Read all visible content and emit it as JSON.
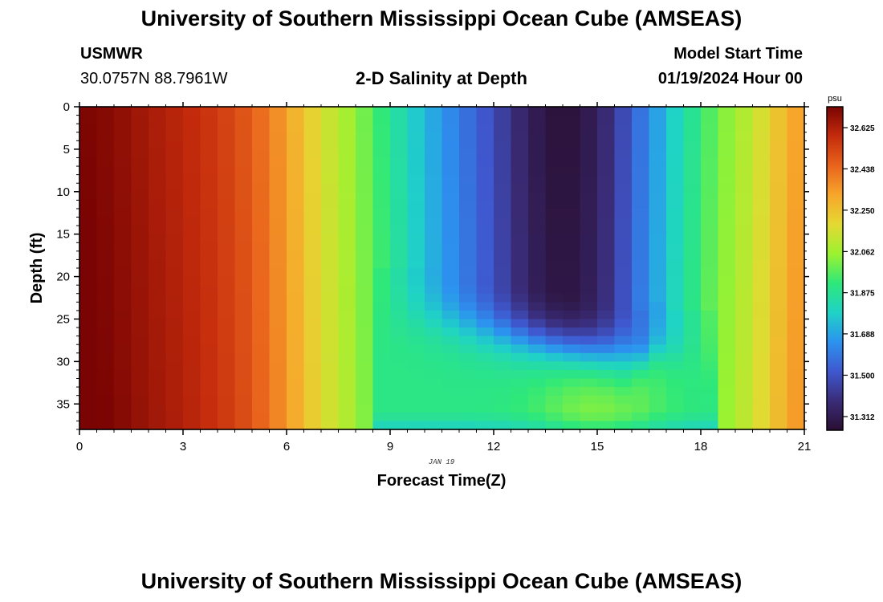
{
  "header": {
    "title": "University of Southern Mississippi Ocean Cube (AMSEAS)",
    "station": "USMWR",
    "coords": "30.0757N  88.7961W",
    "subtitle": "2-D Salinity at Depth",
    "model_label": "Model Start Time",
    "model_time": "01/19/2024 Hour 00"
  },
  "footer": {
    "title": "University of Southern Mississippi Ocean Cube (AMSEAS)"
  },
  "colorbar": {
    "units": "psu",
    "ticks": [
      "32.625",
      "32.438",
      "32.250",
      "32.062",
      "31.875",
      "31.688",
      "31.500",
      "31.312"
    ],
    "min": 31.25,
    "max": 32.72,
    "colors": [
      "#2a0f33",
      "#3a2c78",
      "#3f58cf",
      "#2c92f0",
      "#1fd3c6",
      "#2ee87a",
      "#9cf230",
      "#e4d932",
      "#f7a62b",
      "#e9641c",
      "#c42b0c",
      "#7a0403"
    ]
  },
  "chart_data": {
    "type": "heatmap",
    "title": "2-D Salinity at Depth",
    "xlabel": "Forecast Time(Z)",
    "ylabel": "Depth (ft)",
    "x_ticks": [
      "0",
      "3",
      "6",
      "9",
      "12",
      "15",
      "18",
      "21"
    ],
    "y_ticks": [
      "0",
      "5",
      "10",
      "15",
      "20",
      "25",
      "30",
      "35"
    ],
    "xlim": [
      0,
      21
    ],
    "ylim": [
      0,
      38
    ],
    "date_label": "JAN 19",
    "columns": 42,
    "rows": 38,
    "time_profile": [
      [
        0.0,
        32.72
      ],
      [
        1.0,
        32.69
      ],
      [
        2.0,
        32.64
      ],
      [
        3.0,
        32.6
      ],
      [
        4.0,
        32.55
      ],
      [
        5.0,
        32.47
      ],
      [
        5.5,
        32.4
      ],
      [
        6.0,
        32.33
      ],
      [
        6.5,
        32.24
      ],
      [
        7.0,
        32.16
      ],
      [
        7.5,
        32.1
      ],
      [
        8.0,
        32.04
      ],
      [
        8.5,
        31.96
      ],
      [
        9.0,
        31.88
      ],
      [
        9.5,
        31.8
      ],
      [
        10.0,
        31.73
      ],
      [
        10.5,
        31.66
      ],
      [
        11.0,
        31.6
      ],
      [
        11.5,
        31.54
      ],
      [
        12.0,
        31.48
      ],
      [
        12.5,
        31.4
      ],
      [
        13.0,
        31.33
      ],
      [
        13.5,
        31.28
      ],
      [
        14.0,
        31.26
      ],
      [
        14.5,
        31.28
      ],
      [
        15.0,
        31.33
      ],
      [
        15.5,
        31.42
      ],
      [
        16.0,
        31.53
      ],
      [
        16.5,
        31.63
      ],
      [
        17.0,
        31.74
      ],
      [
        17.5,
        31.83
      ],
      [
        18.0,
        31.92
      ],
      [
        18.5,
        32.0
      ],
      [
        19.0,
        32.06
      ],
      [
        19.5,
        32.12
      ],
      [
        20.0,
        32.2
      ],
      [
        20.5,
        32.29
      ],
      [
        21.0,
        32.35
      ]
    ]
  }
}
